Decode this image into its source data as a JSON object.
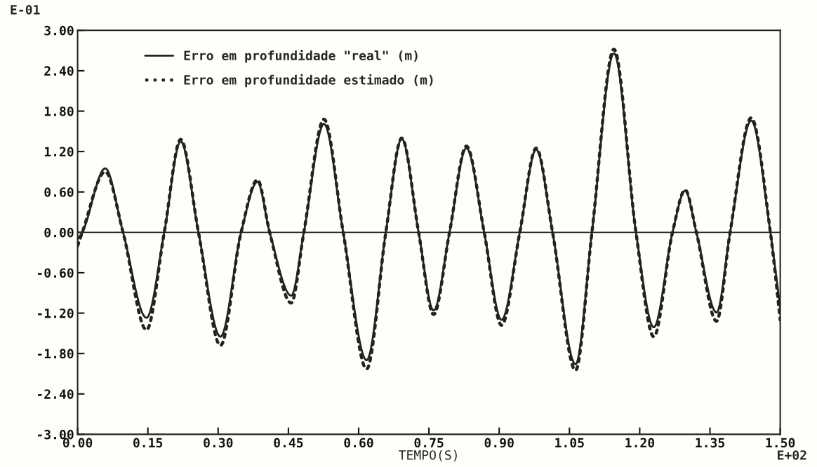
{
  "chart_data": {
    "type": "line",
    "xlabel": "TEMPO(S)",
    "xlim": [
      0,
      1.5
    ],
    "ylim": [
      -3,
      3
    ],
    "xticks": [
      {
        "value": 0,
        "label": "0.00"
      },
      {
        "value": 0.15,
        "label": "0.15"
      },
      {
        "value": 0.3,
        "label": "0.30"
      },
      {
        "value": 0.45,
        "label": "0.45"
      },
      {
        "value": 0.6,
        "label": "0.60"
      },
      {
        "value": 0.75,
        "label": "0.75"
      },
      {
        "value": 0.9,
        "label": "0.90"
      },
      {
        "value": 1.05,
        "label": "1.05"
      },
      {
        "value": 1.2,
        "label": "1.20"
      },
      {
        "value": 1.35,
        "label": "1.35"
      },
      {
        "value": 1.5,
        "label": "1.50"
      }
    ],
    "yticks": [
      {
        "value": -3,
        "label": "-3.00"
      },
      {
        "value": -2.4,
        "label": "-2.40"
      },
      {
        "value": -1.8,
        "label": "-1.80"
      },
      {
        "value": -1.2,
        "label": "-1.20"
      },
      {
        "value": -0.6,
        "label": "-0.60"
      },
      {
        "value": 0,
        "label": "0.00"
      },
      {
        "value": 0.6,
        "label": "0.60"
      },
      {
        "value": 1.2,
        "label": "1.20"
      },
      {
        "value": 1.8,
        "label": "1.80"
      },
      {
        "value": 2.4,
        "label": "2.40"
      },
      {
        "value": 3,
        "label": "3.00"
      }
    ],
    "grid": false,
    "legend": "top left",
    "ref_lines": [
      {
        "axis": "y",
        "value": 0,
        "color": "#222222",
        "line_style": "solid"
      }
    ],
    "annotations": [
      "E-01",
      "E+02"
    ],
    "series": [
      {
        "name": "Erro em profundidade \"real\" (m)",
        "color": "#222222",
        "line_style": "solid",
        "x": [
          0,
          0.01,
          0.059,
          0.097,
          0.147,
          0.185,
          0.22,
          0.258,
          0.305,
          0.349,
          0.384,
          0.41,
          0.456,
          0.483,
          0.526,
          0.567,
          0.617,
          0.658,
          0.692,
          0.728,
          0.76,
          0.794,
          0.83,
          0.868,
          0.905,
          0.944,
          0.979,
          1.014,
          1.063,
          1.098,
          1.145,
          1.192,
          1.23,
          1.27,
          1.297,
          1.321,
          1.364,
          1.393,
          1.438,
          1.479,
          1.5
        ],
        "values": [
          -0.1,
          0,
          0.95,
          0,
          -1.27,
          0,
          1.35,
          0,
          -1.55,
          0,
          0.75,
          0,
          -0.94,
          0,
          1.61,
          0,
          -1.9,
          0,
          1.39,
          0,
          -1.16,
          0,
          1.25,
          0,
          -1.3,
          0,
          1.23,
          0,
          -1.96,
          0,
          2.66,
          0,
          -1.41,
          0,
          0.62,
          0,
          -1.19,
          0,
          1.66,
          0,
          -1.12
        ]
      },
      {
        "name": "Erro em profundidade estimado (m)",
        "color": "#222222",
        "line_style": "dotted",
        "x": [
          0,
          0.01,
          0.059,
          0.097,
          0.147,
          0.185,
          0.22,
          0.258,
          0.305,
          0.349,
          0.384,
          0.41,
          0.456,
          0.483,
          0.526,
          0.567,
          0.617,
          0.658,
          0.692,
          0.728,
          0.76,
          0.794,
          0.83,
          0.868,
          0.905,
          0.944,
          0.979,
          1.014,
          1.063,
          1.098,
          1.145,
          1.192,
          1.23,
          1.27,
          1.297,
          1.321,
          1.364,
          1.393,
          1.438,
          1.479,
          1.5
        ],
        "values": [
          -0.2,
          0,
          0.9,
          0,
          -1.45,
          0,
          1.38,
          0,
          -1.68,
          0,
          0.78,
          0,
          -1.05,
          0,
          1.68,
          0,
          -2.03,
          0,
          1.4,
          0,
          -1.22,
          0,
          1.28,
          0,
          -1.38,
          0,
          1.25,
          0,
          -2.05,
          0,
          2.72,
          0,
          -1.55,
          0,
          0.63,
          0,
          -1.32,
          0,
          1.7,
          0,
          -1.3
        ]
      }
    ]
  }
}
